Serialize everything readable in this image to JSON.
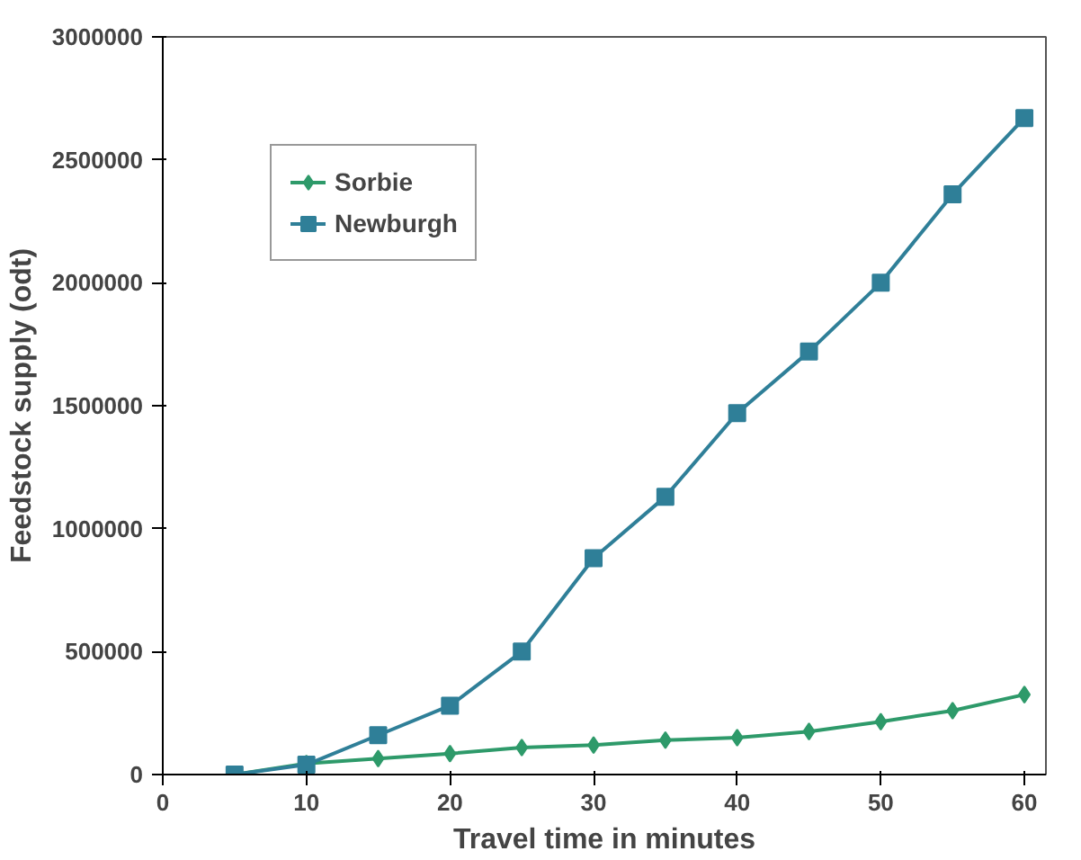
{
  "chart_data": {
    "type": "line",
    "xlabel": "Travel time in minutes",
    "ylabel": "Feedstock supply (odt)",
    "x": [
      5,
      10,
      15,
      20,
      25,
      30,
      35,
      40,
      45,
      50,
      55,
      60
    ],
    "series": [
      {
        "name": "Sorbie",
        "color": "#2e9a6a",
        "marker": "diamond",
        "values": [
          0,
          45000,
          65000,
          85000,
          110000,
          120000,
          140000,
          150000,
          175000,
          215000,
          260000,
          325000
        ]
      },
      {
        "name": "Newburgh",
        "color": "#2f7f98",
        "marker": "square",
        "values": [
          0,
          40000,
          160000,
          280000,
          500000,
          880000,
          1130000,
          1470000,
          1720000,
          2000000,
          2360000,
          2670000
        ]
      }
    ],
    "xlim": [
      0,
      61.5
    ],
    "ylim": [
      0,
      3000000
    ],
    "xticks": [
      0,
      10,
      20,
      30,
      40,
      50,
      60
    ],
    "yticks": [
      0,
      500000,
      1000000,
      1500000,
      2000000,
      2500000,
      3000000
    ],
    "grid": false,
    "legend": "top left",
    "line_style": "solid"
  }
}
